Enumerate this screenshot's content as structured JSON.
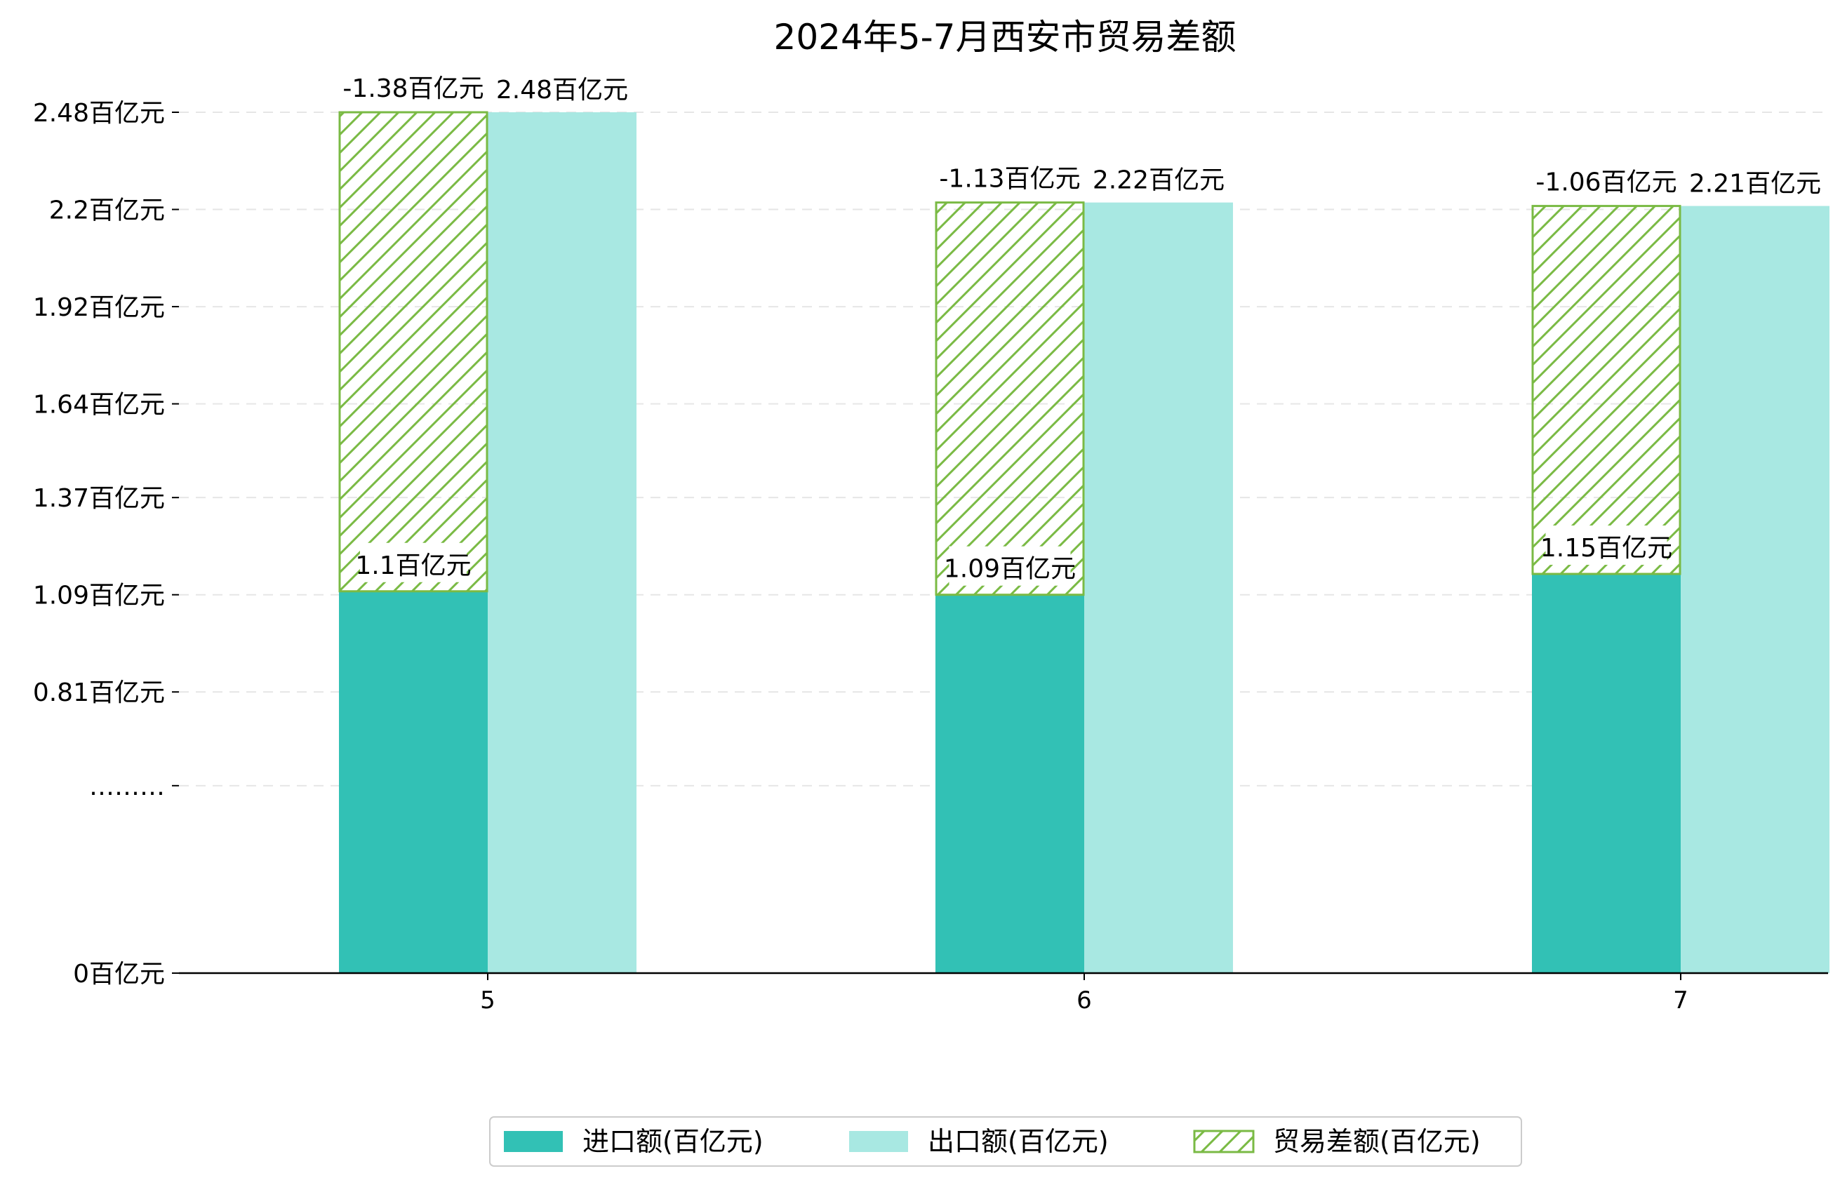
{
  "chart_data": {
    "type": "bar",
    "title": "2024年5-7月西安市贸易差额",
    "xlabel": "",
    "ylabel": "",
    "categories": [
      "5",
      "6",
      "7"
    ],
    "y_tick_labels": [
      "0百亿元",
      "………",
      "0.81百亿元",
      "1.09百亿元",
      "1.37百亿元",
      "1.64百亿元",
      "1.92百亿元",
      "2.2百亿元",
      "2.48百亿元"
    ],
    "y_tick_values": [
      0,
      0.54,
      0.81,
      1.09,
      1.37,
      1.64,
      1.92,
      2.2,
      2.48
    ],
    "grid": true,
    "legend_position": "bottom-center",
    "series": [
      {
        "name": "进口额(百亿元)",
        "values": [
          1.1,
          1.09,
          1.15
        ],
        "labels": [
          "1.1百亿元",
          "1.09百亿元",
          "1.15百亿元"
        ],
        "color": "#32c1b5"
      },
      {
        "name": "出口额(百亿元)",
        "values": [
          2.48,
          2.22,
          2.21
        ],
        "labels": [
          "2.48百亿元",
          "2.22百亿元",
          "2.21百亿元"
        ],
        "color": "#a8e8e2"
      },
      {
        "name": "贸易差额(百亿元)",
        "values": [
          -1.38,
          -1.13,
          -1.06
        ],
        "labels": [
          "-1.38百亿元",
          "-1.13百亿元",
          "-1.06百亿元"
        ],
        "color": "#7aba44",
        "pattern": "hatch"
      }
    ]
  }
}
